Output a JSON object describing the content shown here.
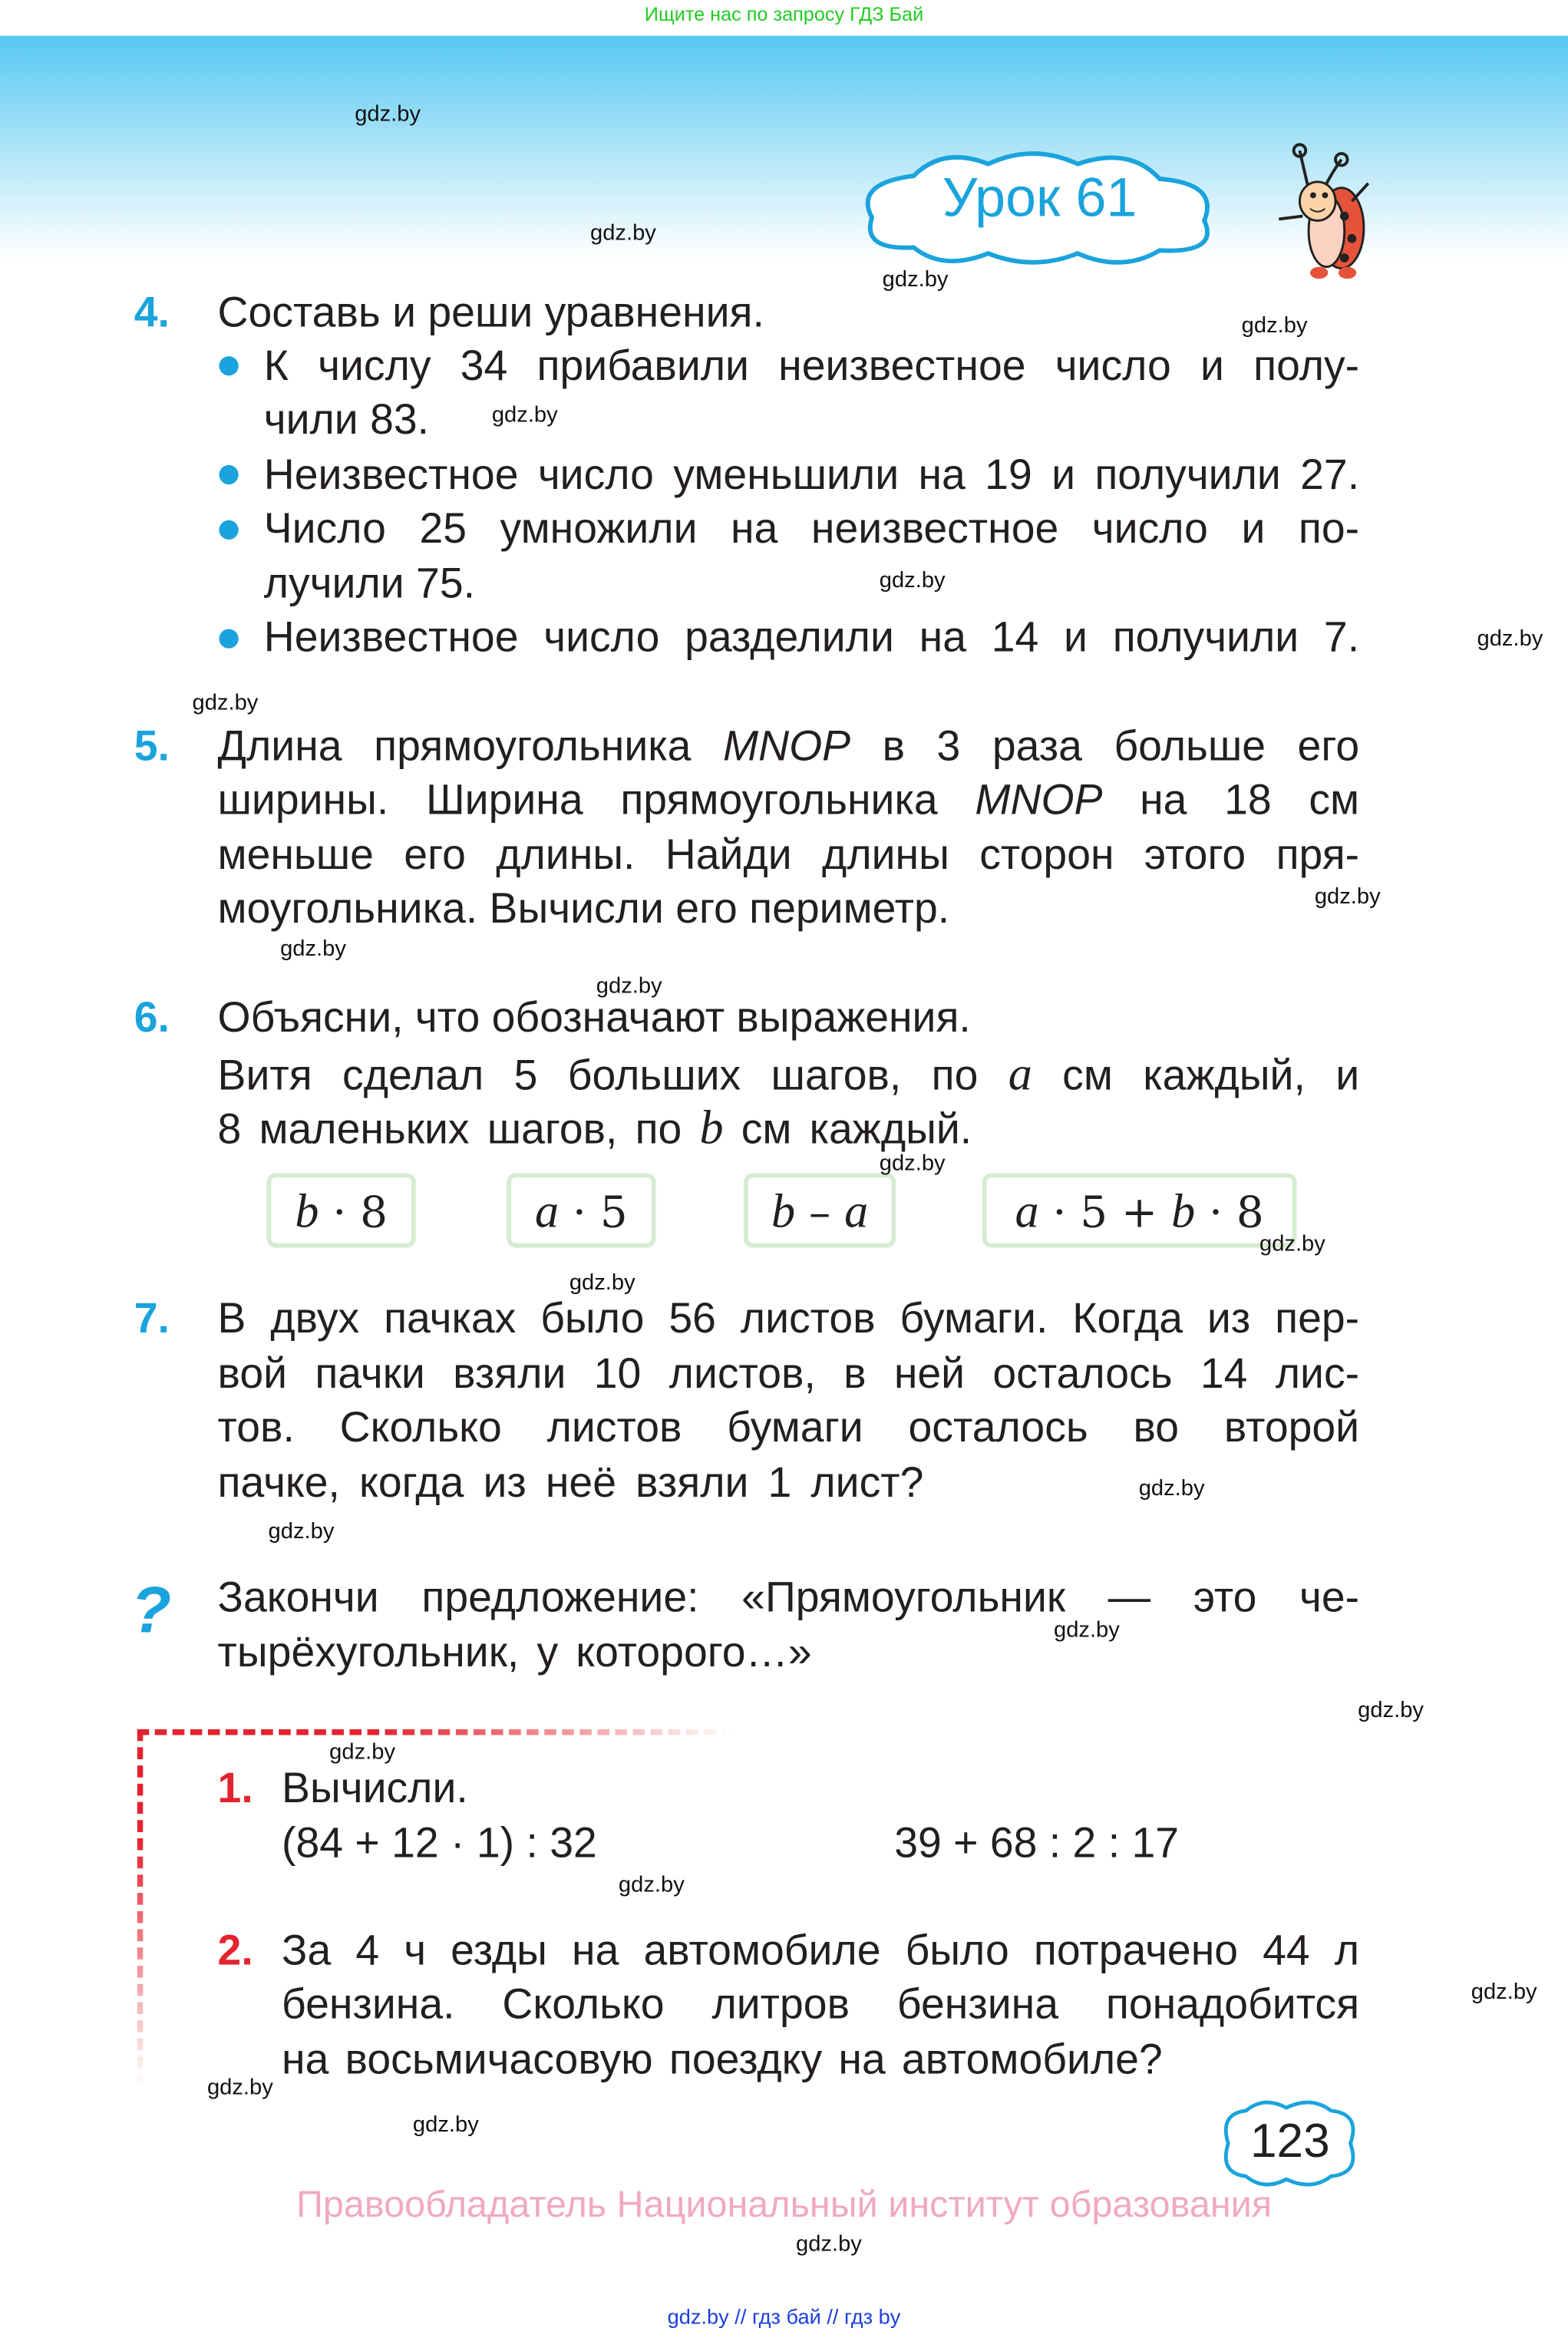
{
  "top_note": "Ищите нас по запросу ГДЗ Бай",
  "lesson_title": "Урок 61",
  "watermark": "gdz.by",
  "tasks": {
    "t4": {
      "number": "4.",
      "title": "Составь и реши уравнения.",
      "bullets": [
        [
          "К числу 34 прибавили неизвестное число и полу-",
          "чили 83."
        ],
        [
          "Неизвестное число уменьшили на 19 и получили 27."
        ],
        [
          "Число 25 умножили на неизвестное число и по-",
          "лучили 75."
        ],
        [
          "Неизвестное число разделили на 14 и получили 7."
        ]
      ]
    },
    "t5": {
      "number": "5.",
      "lines": [
        "Длина прямоугольника MNOP в 3 раза больше его",
        "ширины. Ширина прямоугольника MNOP на 18 см",
        "меньше его длины. Найди длины сторон этого пря-",
        "моугольника. Вычисли его периметр."
      ]
    },
    "t6": {
      "number": "6.",
      "lines": [
        "Объясни, что обозначают выражения.",
        "Витя сделал 5 больших шагов, по a см каждый, и",
        "8 маленьких шагов, по b см каждый."
      ],
      "expressions": [
        "b · 8",
        "a · 5",
        "b – a",
        "a · 5 + b · 8"
      ]
    },
    "t7": {
      "number": "7.",
      "lines": [
        "В двух пачках было 56 листов бумаги. Когда из пер-",
        "вой пачки взяли 10 листов, в ней осталось 14 лис-",
        "тов. Сколько листов бумаги осталось во второй",
        "пачке, когда из неё взяли 1 лист?"
      ]
    },
    "question": {
      "icon": "question-mark-icon",
      "lines": [
        "Закончи предложение: «Прямоугольник — это че-",
        "тырёхугольник, у которого…»"
      ]
    }
  },
  "review": {
    "r1": {
      "number": "1.",
      "title": "Вычисли.",
      "expr1": "(84 + 12 · 1) : 32",
      "expr2": "39 + 68 : 2 : 17"
    },
    "r2": {
      "number": "2.",
      "lines": [
        "За 4 ч езды на автомобиле было потрачено 44 л",
        "бензина. Сколько литров бензина понадобится",
        "на восьмичасовую поездку на автомобиле?"
      ]
    }
  },
  "page_number": "123",
  "copyright": "Правообладатель Национальный институт образования",
  "footer": "gdz.by  //  гдз бай  //  гдз by",
  "colors": {
    "accent": "#1aa3dc",
    "review_accent": "#e3232e",
    "copyright": "#f0a9c0",
    "expression_border": "#d5ecd0"
  }
}
